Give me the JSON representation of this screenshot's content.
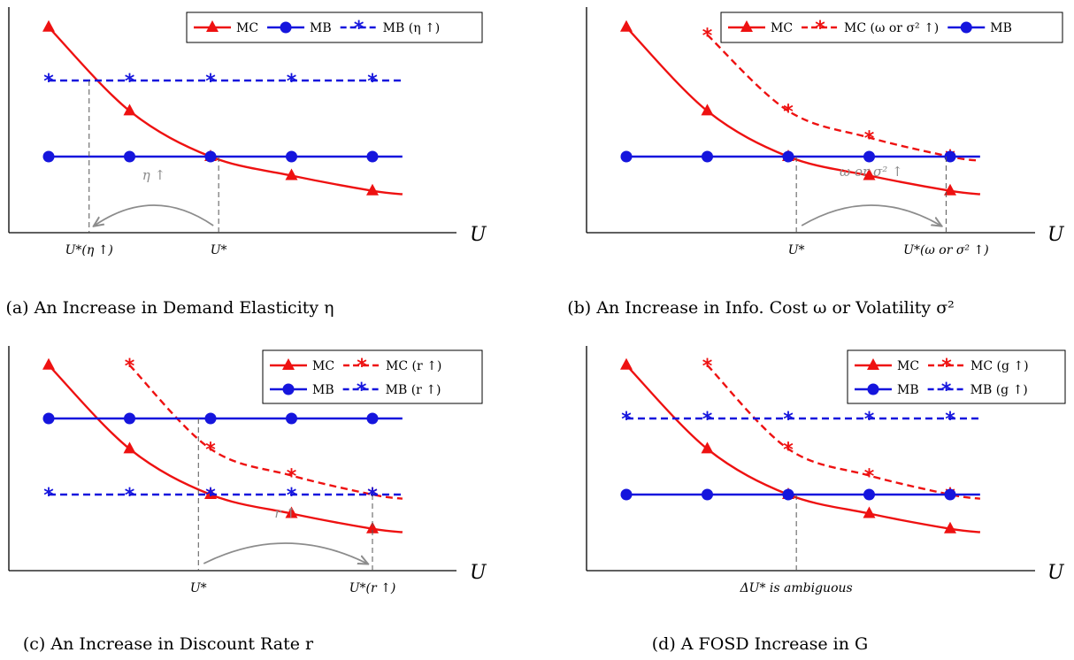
{
  "colors": {
    "red": "#ee1111",
    "blue": "#1515dd",
    "gray": "#8c8c8c"
  },
  "chart_data": [
    {
      "type": "line",
      "xlabel": "U",
      "caption": "(a) An Increase in Demand Elasticity η",
      "x": [
        1,
        2,
        3,
        4,
        5
      ],
      "legend": [
        "MC",
        "MB",
        "MB (η ↑)"
      ],
      "series": [
        {
          "name": "MC",
          "style": "solid",
          "color": "red",
          "marker": "triangle",
          "values": [
            2.7,
            1.6,
            1.0,
            0.75,
            0.55
          ]
        },
        {
          "name": "MB",
          "style": "solid",
          "color": "blue",
          "marker": "circle",
          "values": [
            1.0,
            1.0,
            1.0,
            1.0,
            1.0
          ]
        },
        {
          "name": "MB (η ↑)",
          "style": "dashed",
          "color": "blue",
          "marker": "star",
          "values": [
            2.0,
            2.0,
            2.0,
            2.0,
            2.0
          ]
        }
      ],
      "ticks": [
        {
          "x": 1.5,
          "label": "U*(η ↑)"
        },
        {
          "x": 3.1,
          "label": "U*"
        }
      ],
      "annotation": {
        "text": "η ↑",
        "from": 3.1,
        "to": 1.5
      }
    },
    {
      "type": "line",
      "xlabel": "U",
      "caption": "(b) An Increase in Info. Cost ω or Volatility σ²",
      "x": [
        1,
        2,
        3,
        4,
        5
      ],
      "legend": [
        "MC",
        "MC (ω or σ² ↑)",
        "MB"
      ],
      "series": [
        {
          "name": "MC",
          "style": "solid",
          "color": "red",
          "marker": "triangle",
          "values": [
            2.7,
            1.6,
            1.0,
            0.75,
            0.55
          ]
        },
        {
          "name": "MC (ω or σ² ↑)",
          "style": "dashed",
          "color": "red",
          "marker": "star",
          "values": [
            null,
            2.6,
            1.6,
            1.25,
            1.0
          ]
        },
        {
          "name": "MB",
          "style": "solid",
          "color": "blue",
          "marker": "circle",
          "values": [
            1.0,
            1.0,
            1.0,
            1.0,
            1.0
          ]
        }
      ],
      "ticks": [
        {
          "x": 3.1,
          "label": "U*"
        },
        {
          "x": 4.95,
          "label": "U*(ω or σ² ↑)"
        }
      ],
      "annotation": {
        "text": "ω or σ² ↑",
        "from": 3.1,
        "to": 4.95
      }
    },
    {
      "type": "line",
      "xlabel": "U",
      "caption": "(c) An Increase in Discount Rate r",
      "x": [
        1,
        2,
        3,
        4,
        5
      ],
      "legend": [
        "MC",
        "MC (r ↑)",
        "MB",
        "MB (r ↑)"
      ],
      "series": [
        {
          "name": "MC",
          "style": "solid",
          "color": "red",
          "marker": "triangle",
          "values": [
            2.7,
            1.6,
            1.0,
            0.75,
            0.55
          ]
        },
        {
          "name": "MC (r ↑)",
          "style": "dashed",
          "color": "red",
          "marker": "star",
          "values": [
            null,
            2.7,
            1.6,
            1.25,
            1.0
          ]
        },
        {
          "name": "MB",
          "style": "solid",
          "color": "blue",
          "marker": "circle",
          "values": [
            2.0,
            2.0,
            2.0,
            2.0,
            2.0
          ]
        },
        {
          "name": "MB (r ↑)",
          "style": "dashed",
          "color": "blue",
          "marker": "star",
          "values": [
            1.0,
            1.0,
            1.0,
            1.0,
            1.0
          ]
        }
      ],
      "ticks": [
        {
          "x": 2.85,
          "label": "U*"
        },
        {
          "x": 5.0,
          "label": "U*(r ↑)"
        }
      ],
      "annotation": {
        "text": "r ↑",
        "from": 2.85,
        "to": 5.0
      }
    },
    {
      "type": "line",
      "xlabel": "U",
      "caption": "(d) A FOSD Increase in G",
      "x": [
        1,
        2,
        3,
        4,
        5
      ],
      "legend": [
        "MC",
        "MC (g ↑)",
        "MB",
        "MB (g ↑)"
      ],
      "series": [
        {
          "name": "MC",
          "style": "solid",
          "color": "red",
          "marker": "triangle",
          "values": [
            2.7,
            1.6,
            1.0,
            0.75,
            0.55
          ]
        },
        {
          "name": "MC (g ↑)",
          "style": "dashed",
          "color": "red",
          "marker": "star",
          "values": [
            null,
            2.7,
            1.6,
            1.25,
            1.0
          ]
        },
        {
          "name": "MB",
          "style": "solid",
          "color": "blue",
          "marker": "circle",
          "values": [
            1.0,
            1.0,
            1.0,
            1.0,
            1.0
          ]
        },
        {
          "name": "MB (g ↑)",
          "style": "dashed",
          "color": "blue",
          "marker": "star",
          "values": [
            2.0,
            2.0,
            2.0,
            2.0,
            2.0
          ]
        }
      ],
      "ticks": [
        {
          "x": 3.1,
          "label": "ΔU* is ambiguous"
        }
      ]
    }
  ]
}
